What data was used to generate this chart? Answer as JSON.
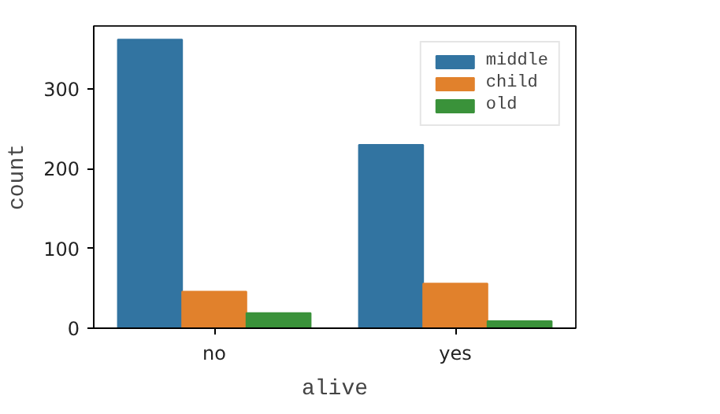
{
  "chart_data": {
    "type": "bar",
    "xlabel": "alive",
    "ylabel": "count",
    "categories": [
      "no",
      "yes"
    ],
    "series": [
      {
        "name": "middle",
        "color": "#3274a1",
        "values": [
          362,
          230
        ]
      },
      {
        "name": "child",
        "color": "#e1812c",
        "values": [
          46,
          56
        ]
      },
      {
        "name": "old",
        "color": "#3a923a",
        "values": [
          19,
          9
        ]
      }
    ],
    "ylim": [
      0,
      379
    ],
    "yticks": [
      0,
      100,
      200,
      300
    ],
    "grid": false,
    "legend": "top right"
  }
}
